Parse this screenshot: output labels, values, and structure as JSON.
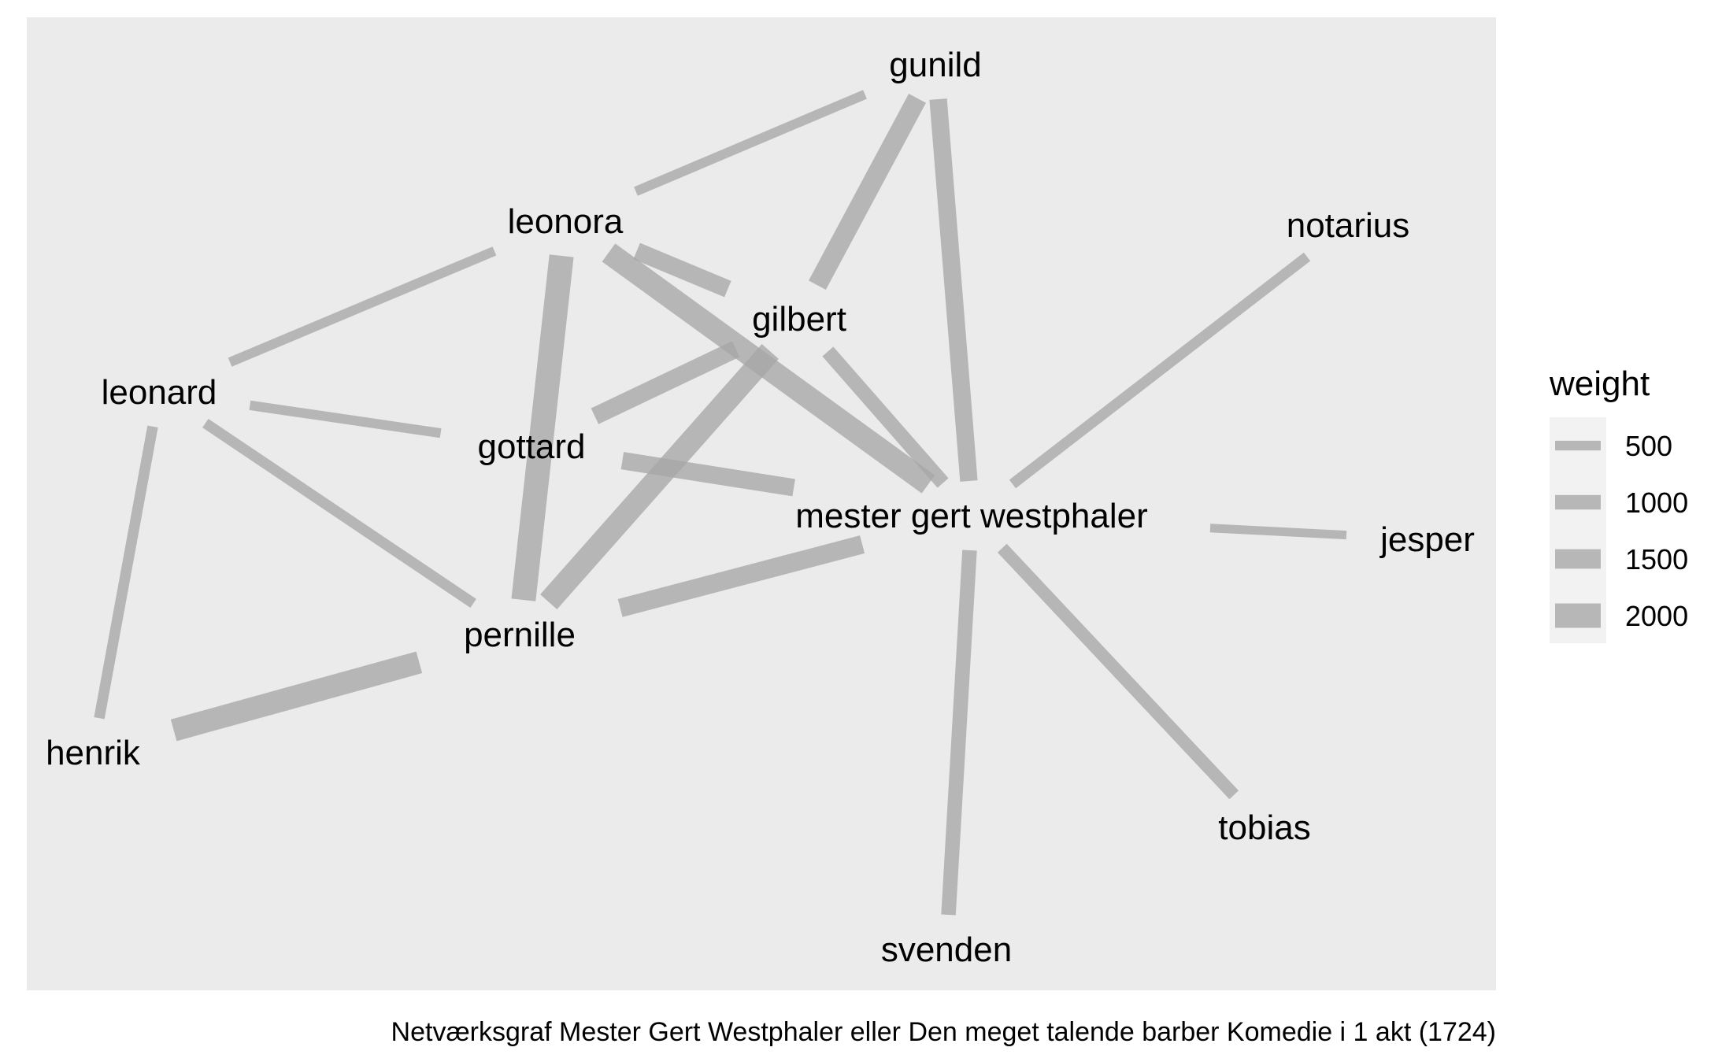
{
  "nodes": [
    {
      "id": "gunild",
      "label": "gunild"
    },
    {
      "id": "leonora",
      "label": "leonora"
    },
    {
      "id": "notarius",
      "label": "notarius"
    },
    {
      "id": "gilbert",
      "label": "gilbert"
    },
    {
      "id": "leonard",
      "label": "leonard"
    },
    {
      "id": "gottard",
      "label": "gottard"
    },
    {
      "id": "mester",
      "label": "mester gert westphaler"
    },
    {
      "id": "jesper",
      "label": "jesper"
    },
    {
      "id": "pernille",
      "label": "pernille"
    },
    {
      "id": "henrik",
      "label": "henrik"
    },
    {
      "id": "tobias",
      "label": "tobias"
    },
    {
      "id": "svenden",
      "label": "svenden"
    }
  ],
  "edges": [
    {
      "source": "leonora",
      "target": "gunild",
      "weight": 500
    },
    {
      "source": "leonora",
      "target": "leonard",
      "weight": 500
    },
    {
      "source": "leonora",
      "target": "pernille",
      "weight": 2000
    },
    {
      "source": "leonora",
      "target": "gilbert",
      "weight": 1300
    },
    {
      "source": "leonora",
      "target": "mester",
      "weight": 1800
    },
    {
      "source": "gunild",
      "target": "gilbert",
      "weight": 1500
    },
    {
      "source": "gunild",
      "target": "mester",
      "weight": 1300
    },
    {
      "source": "gilbert",
      "target": "gottard",
      "weight": 1300
    },
    {
      "source": "gilbert",
      "target": "pernille",
      "weight": 1800
    },
    {
      "source": "gilbert",
      "target": "mester",
      "weight": 1000
    },
    {
      "source": "leonard",
      "target": "gottard",
      "weight": 500
    },
    {
      "source": "leonard",
      "target": "pernille",
      "weight": 600
    },
    {
      "source": "leonard",
      "target": "henrik",
      "weight": 600
    },
    {
      "source": "gottard",
      "target": "mester",
      "weight": 1300
    },
    {
      "source": "pernille",
      "target": "mester",
      "weight": 1400
    },
    {
      "source": "pernille",
      "target": "henrik",
      "weight": 1800
    },
    {
      "source": "mester",
      "target": "notarius",
      "weight": 600
    },
    {
      "source": "mester",
      "target": "jesper",
      "weight": 400
    },
    {
      "source": "mester",
      "target": "tobias",
      "weight": 800
    },
    {
      "source": "mester",
      "target": "svenden",
      "weight": 1000
    }
  ],
  "legend": {
    "title": "weight",
    "items": [
      {
        "label": "500",
        "value": 500
      },
      {
        "label": "1000",
        "value": 1000
      },
      {
        "label": "1500",
        "value": 1500
      },
      {
        "label": "2000",
        "value": 2000
      }
    ]
  },
  "caption": "Netværksgraf Mester Gert Westphaler eller Den meget talende barber Komedie i 1 akt (1724)",
  "colors": {
    "panel_background": "#EBEBEB",
    "edge": "#A6A6A6",
    "text": "#000000",
    "legend_key_background": "#F2F2F2"
  }
}
